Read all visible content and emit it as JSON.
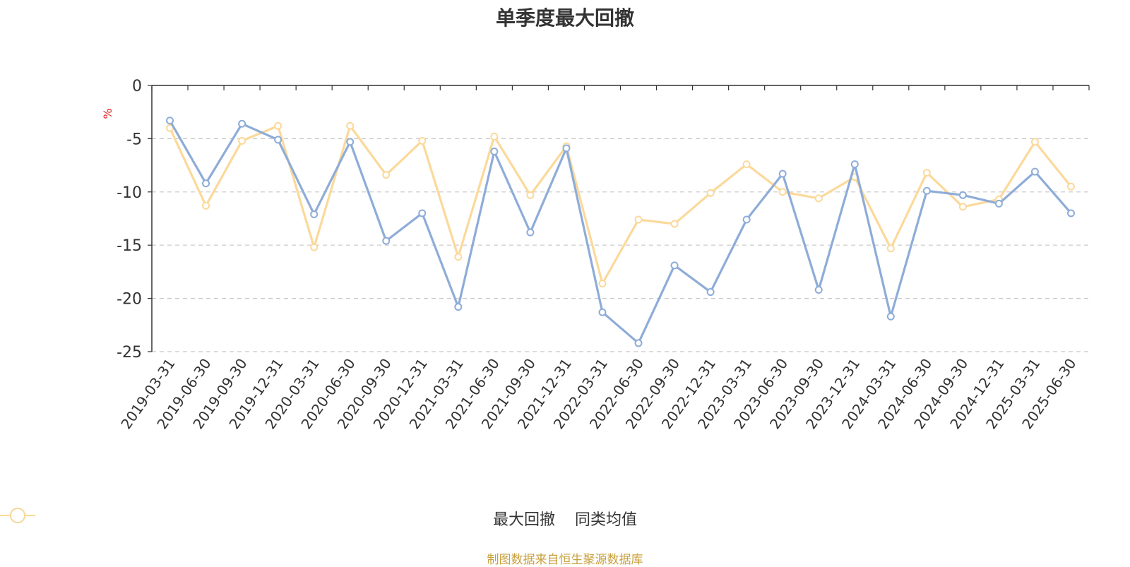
{
  "chart_data": {
    "type": "line",
    "title": "单季度最大回撤",
    "ylabel": "%",
    "ylim": [
      -25,
      0
    ],
    "yticks": [
      0,
      -5,
      -10,
      -15,
      -20,
      -25
    ],
    "grid": true,
    "legend_position": "bottom",
    "x": [
      "2019-03-31",
      "2019-06-30",
      "2019-09-30",
      "2019-12-31",
      "2020-03-31",
      "2020-06-30",
      "2020-09-30",
      "2020-12-31",
      "2021-03-31",
      "2021-06-30",
      "2021-09-30",
      "2021-12-31",
      "2022-03-31",
      "2022-06-30",
      "2022-09-30",
      "2022-12-31",
      "2023-03-31",
      "2023-06-30",
      "2023-09-30",
      "2023-12-31",
      "2024-03-31",
      "2024-06-30",
      "2024-09-30",
      "2024-12-31",
      "2025-03-31",
      "2025-06-30"
    ],
    "series": [
      {
        "name": "最大回撤",
        "color": "#8eacd8",
        "values": [
          -3.3,
          -9.2,
          -3.6,
          -5.1,
          -12.1,
          -5.3,
          -14.6,
          -12.0,
          -20.8,
          -6.2,
          -13.8,
          -5.9,
          -21.3,
          -24.2,
          -16.9,
          -19.4,
          -12.6,
          -8.3,
          -19.2,
          -7.4,
          -21.7,
          -9.9,
          -10.3,
          -11.1,
          -8.1,
          -12.0
        ]
      },
      {
        "name": "同类均值",
        "color": "#fbd99a",
        "values": [
          -4.0,
          -11.3,
          -5.2,
          -3.8,
          -15.2,
          -3.8,
          -8.4,
          -5.2,
          -16.1,
          -4.8,
          -10.3,
          -5.7,
          -18.6,
          -12.6,
          -13.0,
          -10.1,
          -7.4,
          -10.0,
          -10.6,
          -8.6,
          -15.3,
          -8.2,
          -11.4,
          -10.7,
          -5.3,
          -9.5
        ]
      }
    ]
  },
  "footer": "制图数据来自恒生聚源数据库"
}
